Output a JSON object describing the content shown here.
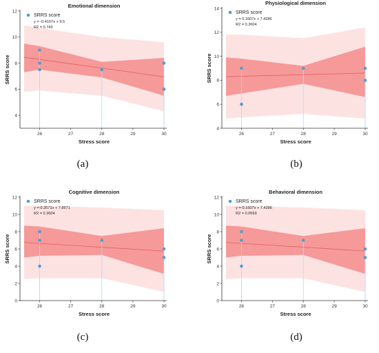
{
  "chart_data": [
    {
      "type": "scatter",
      "panel_label": "(a)",
      "title": "Emotional dimension",
      "xlabel": "Stress score",
      "ylabel": "SRRS score",
      "xlim": [
        25.5,
        30
      ],
      "ylim": [
        3,
        12
      ],
      "xticks": [
        26,
        27,
        28,
        29,
        30
      ],
      "yticks": [
        4,
        6,
        8,
        10,
        12
      ],
      "legend": "SRRS score",
      "equation": "y = -0.4107x + 9.5",
      "r2_label": "R2 = 0.743",
      "points": [
        [
          26,
          9
        ],
        [
          26,
          8
        ],
        [
          26,
          7.5
        ],
        [
          28,
          7.5
        ],
        [
          30,
          8
        ],
        [
          30,
          6
        ]
      ],
      "fit_line": [
        [
          25.5,
          8.45
        ],
        [
          30,
          6.95
        ]
      ],
      "confidence_band": {
        "x": [
          25.5,
          26,
          28,
          30
        ],
        "lower": [
          7.3,
          7.5,
          6.9,
          5.5
        ],
        "upper": [
          9.5,
          9.3,
          8.1,
          8.4
        ]
      },
      "prediction_band": {
        "x": [
          25.5,
          26,
          28,
          30
        ],
        "lower": [
          5.8,
          5.9,
          5.5,
          4.3
        ],
        "upper": [
          10.9,
          10.7,
          10.0,
          9.6
        ]
      }
    },
    {
      "type": "scatter",
      "panel_label": "(b)",
      "title": "Physiological dimension",
      "xlabel": "Stress score",
      "ylabel": "SRRS score",
      "xlim": [
        25.5,
        30
      ],
      "ylim": [
        4,
        14
      ],
      "xticks": [
        26,
        27,
        28,
        29,
        30
      ],
      "yticks": [
        4,
        6,
        8,
        10,
        12,
        14
      ],
      "legend": "SRRS score",
      "equation": "y = 0.1607x + 7.4286",
      "r2_label": "R2 = 0.2604",
      "points": [
        [
          26,
          9
        ],
        [
          26,
          6
        ],
        [
          28,
          9
        ],
        [
          30,
          9
        ],
        [
          30,
          8
        ]
      ],
      "fit_line": [
        [
          25.5,
          8.3
        ],
        [
          30,
          8.6
        ]
      ],
      "confidence_band": {
        "x": [
          25.5,
          26,
          28,
          30
        ],
        "lower": [
          6.7,
          6.9,
          7.7,
          6.6
        ],
        "upper": [
          9.9,
          9.8,
          9.2,
          10.8
        ]
      },
      "prediction_band": {
        "x": [
          25.5,
          26,
          28,
          30
        ],
        "lower": [
          4.8,
          4.9,
          5.2,
          4.8
        ],
        "upper": [
          11.8,
          11.8,
          11.5,
          12.4
        ]
      }
    },
    {
      "type": "scatter",
      "panel_label": "(c)",
      "title": "Cognitive dimension",
      "xlabel": "Stress score",
      "ylabel": "SRRS score",
      "xlim": [
        25.5,
        30
      ],
      "ylim": [
        0,
        12
      ],
      "xticks": [
        26,
        27,
        28,
        29,
        30
      ],
      "yticks": [
        0,
        2,
        4,
        6,
        8,
        10,
        12
      ],
      "legend": "SRRS score",
      "equation": "y =-0.3571x + 7.8571",
      "r2_label": "R2 = 0.2604",
      "points": [
        [
          26,
          8
        ],
        [
          26,
          7
        ],
        [
          26,
          4
        ],
        [
          28,
          7
        ],
        [
          30,
          6
        ],
        [
          30,
          5
        ]
      ],
      "fit_line": [
        [
          25.5,
          6.75
        ],
        [
          30,
          5.75
        ]
      ],
      "confidence_band": {
        "x": [
          25.5,
          26,
          28,
          30
        ],
        "lower": [
          5.0,
          5.2,
          5.3,
          3.1
        ],
        "upper": [
          8.7,
          8.6,
          7.5,
          8.4
        ]
      },
      "prediction_band": {
        "x": [
          25.5,
          26,
          28,
          30
        ],
        "lower": [
          2.5,
          2.6,
          2.6,
          1.0
        ],
        "upper": [
          11.0,
          11.0,
          10.8,
          10.5
        ]
      }
    },
    {
      "type": "scatter",
      "panel_label": "(d)",
      "title": "Behavioral dimension",
      "xlabel": "Stress score",
      "ylabel": "SRRS score",
      "xlim": [
        25.5,
        30
      ],
      "ylim": [
        0,
        12
      ],
      "xticks": [
        26,
        27,
        28,
        29,
        30
      ],
      "yticks": [
        0,
        2,
        4,
        6,
        8,
        10,
        12
      ],
      "legend": "SRRS score",
      "equation": "y =-0.1607x + 7.4286",
      "r2_label": "R2 = 0.0559",
      "points": [
        [
          26,
          8
        ],
        [
          26,
          7
        ],
        [
          26,
          4
        ],
        [
          28,
          7
        ],
        [
          30,
          6
        ],
        [
          30,
          5
        ]
      ],
      "fit_line": [
        [
          25.5,
          6.75
        ],
        [
          30,
          5.75
        ]
      ],
      "confidence_band": {
        "x": [
          25.5,
          26,
          28,
          30
        ],
        "lower": [
          5.0,
          5.2,
          5.3,
          3.1
        ],
        "upper": [
          8.7,
          8.6,
          7.5,
          8.4
        ]
      },
      "prediction_band": {
        "x": [
          25.5,
          26,
          28,
          30
        ],
        "lower": [
          2.5,
          2.6,
          2.6,
          1.0
        ],
        "upper": [
          11.0,
          11.0,
          10.8,
          10.5
        ]
      }
    }
  ],
  "colors": {
    "point": "#4a9fd4",
    "drop_line": "#b8dcef",
    "fit_line": "#e06060",
    "confidence_band": "#f58c8c",
    "prediction_band": "#fde2e2",
    "axis": "#333333"
  }
}
